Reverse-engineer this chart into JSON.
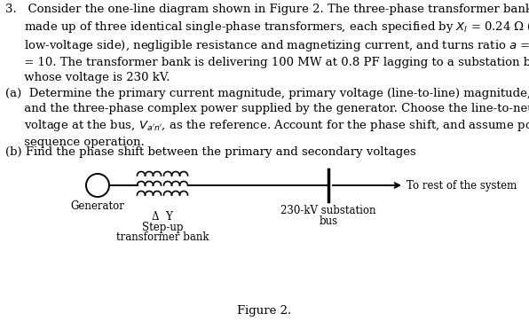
{
  "title": "Figure 2.",
  "background_color": "#ffffff",
  "text_color": "#000000",
  "font_size_body": 9.5,
  "font_size_label": 8.5,
  "font_size_figure": 9.5,
  "gen_label": "Generator",
  "tx_label1": "Δ  Y",
  "tx_label2": "Step-up",
  "tx_label3": "transformer bank",
  "bus_label1": "230-kV substation",
  "bus_label2": "bus",
  "arrow_label": "To rest of the system"
}
